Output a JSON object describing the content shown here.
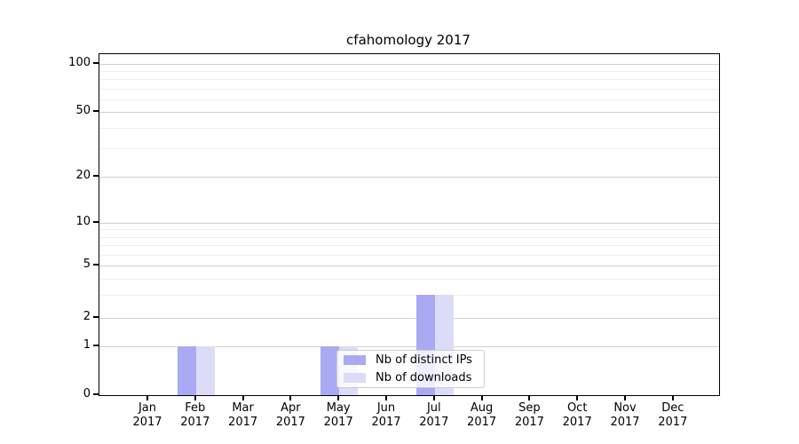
{
  "title": "cfahomology 2017",
  "chart_data": {
    "type": "bar",
    "title": "cfahomology 2017",
    "categories": [
      "Jan 2017",
      "Feb 2017",
      "Mar 2017",
      "Apr 2017",
      "May 2017",
      "Jun 2017",
      "Jul 2017",
      "Aug 2017",
      "Sep 2017",
      "Oct 2017",
      "Nov 2017",
      "Dec 2017"
    ],
    "x_tick_months": [
      "Jan",
      "Feb",
      "Mar",
      "Apr",
      "May",
      "Jun",
      "Jul",
      "Aug",
      "Sep",
      "Oct",
      "Nov",
      "Dec"
    ],
    "x_tick_year": "2017",
    "series": [
      {
        "name": "Nb of distinct IPs",
        "color": "#a9a9f4",
        "values": [
          0,
          1,
          0,
          0,
          1,
          0,
          3,
          0,
          0,
          0,
          0,
          0
        ]
      },
      {
        "name": "Nb of downloads",
        "color": "#dcdcf9",
        "values": [
          0,
          1,
          0,
          0,
          1,
          0,
          3,
          0,
          0,
          0,
          0,
          0
        ]
      }
    ],
    "yaxis": {
      "scale": "symlog",
      "ticks": [
        0,
        1,
        2,
        5,
        10,
        20,
        50,
        100
      ],
      "minor_ticks": [
        3,
        4,
        6,
        7,
        8,
        9,
        30,
        40,
        60,
        70,
        80,
        90
      ],
      "range": [
        0,
        114
      ]
    },
    "xlabel": "",
    "ylabel": "",
    "grid": true,
    "legend": {
      "location": "lower right",
      "entries": [
        "Nb of distinct IPs",
        "Nb of downloads"
      ]
    }
  },
  "colors": {
    "bar_distinct_ips": "#a9a9f4",
    "bar_downloads": "#dcdcf9",
    "major_grid": "#cfcfcf",
    "minor_grid": "#eeeeee",
    "spine": "#000000"
  }
}
